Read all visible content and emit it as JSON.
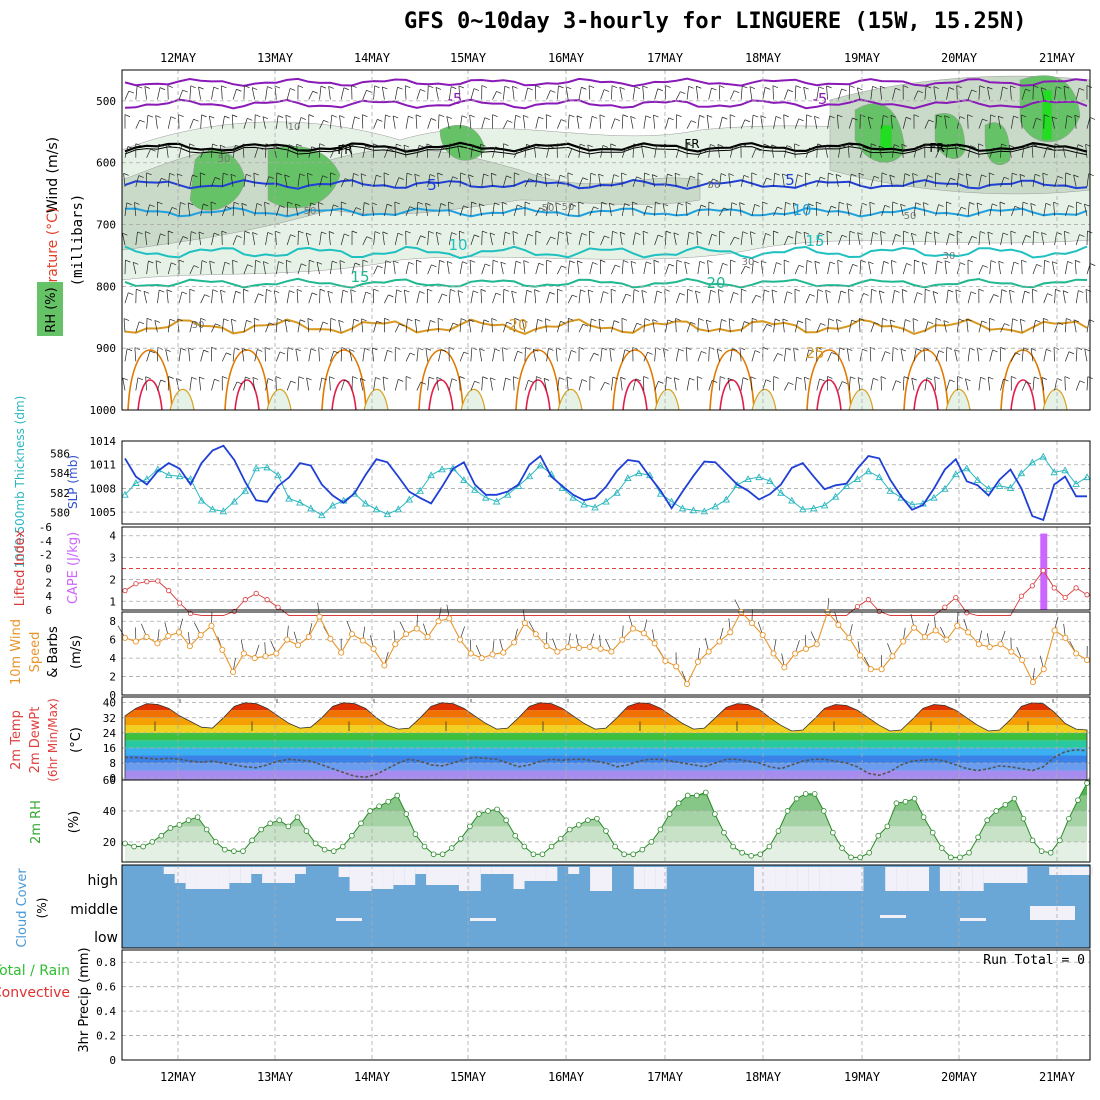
{
  "header": {
    "title": "GFS 0~10day 3-hourly for LINGUERE (15W, 15.25N)"
  },
  "dates": [
    "12MAY",
    "13MAY",
    "14MAY",
    "15MAY",
    "16MAY",
    "17MAY",
    "18MAY",
    "19MAY",
    "20MAY",
    "21MAY"
  ],
  "colors": {
    "rh_green": "#3cbf3c",
    "temp_contour": "#e07a00",
    "slp": "#1f3fd6",
    "thickness": "#2ab7c0",
    "cape": "#cc66ff",
    "lifted_index": "#d93a3a",
    "wind_speed": "#e8962c",
    "rh2m": "#33aa33",
    "cloud": "#6aa7d6",
    "precip_total": "#2fbf2f",
    "precip_conv": "#e03030"
  },
  "chart_data": [
    {
      "type": "heatmap",
      "panel": "upper-air",
      "ylabel_parts": [
        "Wind (m/s)",
        "Temperature (°C)",
        "RH (%)"
      ],
      "yunit": "(millibars)",
      "yticks": [
        "500",
        "600",
        "700",
        "800",
        "900",
        "1000"
      ],
      "ylim": [
        1000,
        450
      ],
      "contour_labels": {
        "freezing": "FR",
        "temps": [
          "-5",
          "-5",
          "5",
          "5",
          "10",
          "10",
          "15",
          "15",
          "20",
          "20",
          "25",
          "25"
        ],
        "rh": [
          "10",
          "50",
          "50",
          "50",
          "50",
          "50",
          "50",
          "30",
          "30",
          "30"
        ]
      }
    },
    {
      "type": "line",
      "panel": "slp-thickness",
      "ylabel_left": "1000-500mb Thickness (dm)",
      "ylabel_right": "SLP (mb)",
      "yticks_left": [
        "586",
        "584",
        "582",
        "580"
      ],
      "yticks_right": [
        "1014",
        "1011",
        "1008",
        "1005"
      ],
      "series": [
        {
          "name": "SLP (mb)",
          "values": [
            1011.8,
            1009.5,
            1008.5,
            1010.2,
            1011.2,
            1010.5,
            1008.5,
            1011.2,
            1012.8,
            1013.4,
            1011.6,
            1008.8,
            1006.5,
            1006.3,
            1008.3,
            1009.4,
            1011.2,
            1010.9,
            1008.5,
            1007.1,
            1006.2,
            1007.4,
            1009.7,
            1011.7,
            1011.3,
            1009.5,
            1007.6,
            1006.8,
            1006.1,
            1008.2,
            1010.5,
            1011.3,
            1008.5,
            1007.2,
            1007.2,
            1007.6,
            1008.5,
            1011.0,
            1012.1,
            1009.5,
            1008.3,
            1007.2,
            1006.5,
            1006.8,
            1008.2,
            1010.2,
            1011.6,
            1011.4,
            1009.5,
            1007.7,
            1005.5,
            1007.6,
            1009.6,
            1011.4,
            1011.3,
            1009.9,
            1008.5,
            1007.7,
            1006.6,
            1007.3,
            1008.5,
            1010.6,
            1011.2,
            1009.5,
            1007.9,
            1008.4,
            1008.6,
            1010.5,
            1012.1,
            1011.8,
            1009.1,
            1007.0,
            1005.3,
            1005.9,
            1008.0,
            1010.4,
            1011.7,
            1008.9,
            1008.4,
            1007.1,
            1009.1,
            1010.4,
            1008.0,
            1004.5,
            1004.0,
            1008.5,
            1009.5,
            1007.0,
            1007.0
          ]
        },
        {
          "name": "1000-500mb Thickness (dm)",
          "values": [
            581.8,
            583.0,
            583.4,
            584.4,
            583.8,
            583.7,
            583.4,
            581.2,
            580.3,
            580.1,
            581.1,
            582.2,
            584.5,
            584.6,
            583.8,
            581.4,
            581.0,
            580.4,
            579.7,
            580.7,
            581.2,
            581.9,
            580.9,
            580.3,
            579.8,
            580.3,
            581.3,
            582.2,
            583.8,
            584.4,
            584.5,
            583.3,
            582.3,
            581.5,
            581.1,
            581.8,
            582.7,
            583.7,
            584.8,
            583.9,
            582.5,
            581.5,
            580.8,
            580.5,
            581.1,
            582.0,
            583.5,
            584.0,
            583.8,
            581.9,
            581.1,
            580.4,
            580.2,
            580.1,
            580.6,
            581.3,
            582.8,
            583.4,
            583.6,
            583.2,
            582.0,
            581.2,
            580.3,
            580.4,
            580.7,
            581.6,
            582.7,
            583.4,
            584.2,
            583.6,
            582.2,
            581.5,
            580.8,
            580.9,
            581.5,
            582.4,
            583.9,
            584.5,
            583.3,
            582.4,
            582.7,
            582.5,
            584.0,
            585.1,
            585.7,
            584.1,
            584.3,
            582.9,
            583.6
          ]
        }
      ]
    },
    {
      "type": "line",
      "panel": "cape-lifted-index",
      "ylabel_left": "Lifted Index",
      "ylabel_right": "CAPE (J/kg)",
      "yticks_left": [
        "-6",
        "-4",
        "-2",
        "0",
        "2",
        "4",
        "6"
      ],
      "yticks_right": [
        "4",
        "3",
        "2",
        "1"
      ],
      "series": [
        {
          "name": "Lifted Index",
          "values": [
            3.2,
            2.2,
            1.9,
            1.8,
            3.2,
            5.0,
            6.5,
            6.8,
            7.0,
            7.0,
            6.2,
            4.5,
            3.6,
            4.5,
            5.6,
            6.8,
            7.0,
            7.0,
            7.0,
            7.0,
            7.0,
            7.0,
            7.0,
            7.0,
            7.0,
            7.0,
            7.0,
            7.0,
            7.0,
            7.0,
            7.0,
            7.0,
            7.0,
            7.0,
            7.0,
            7.0,
            7.0,
            7.0,
            7.0,
            7.0,
            7.0,
            7.0,
            7.0,
            7.0,
            7.0,
            7.0,
            7.0,
            7.0,
            7.0,
            7.0,
            7.0,
            7.0,
            7.0,
            7.0,
            7.0,
            7.0,
            7.0,
            7.0,
            7.0,
            7.0,
            7.0,
            7.0,
            7.0,
            7.0,
            7.0,
            7.0,
            7.0,
            5.5,
            4.5,
            6.2,
            7.0,
            7.0,
            7.0,
            7.0,
            7.0,
            5.6,
            4.2,
            6.4,
            7.0,
            7.0,
            7.0,
            7.0,
            4.0,
            2.5,
            0.3,
            2.8,
            4.2,
            2.8,
            3.8
          ]
        },
        {
          "name": "CAPE (J/kg)",
          "values": [
            0,
            0,
            0,
            0,
            0,
            0,
            0,
            0,
            0,
            0,
            0,
            0,
            0,
            0,
            0,
            0,
            0,
            0,
            0,
            0,
            0,
            0,
            0,
            0,
            0,
            0,
            0,
            0,
            0,
            0,
            0,
            0,
            0,
            0,
            0,
            0,
            0,
            0,
            0,
            0,
            0,
            0,
            0,
            0,
            0,
            0,
            0,
            0,
            0,
            0,
            0,
            0,
            0,
            0,
            0,
            0,
            0,
            0,
            0,
            0,
            0,
            0,
            0,
            0,
            0,
            0,
            0,
            0,
            0,
            0,
            0,
            0,
            0,
            0,
            0,
            0,
            0,
            0,
            0,
            0,
            0,
            0,
            0,
            0,
            4.1,
            0,
            0,
            0,
            0
          ]
        }
      ]
    },
    {
      "type": "line",
      "panel": "10m-wind",
      "ylabel_parts": [
        "10m Wind",
        "Speed",
        "& Barbs",
        "(m/s)"
      ],
      "yticks": [
        "8",
        "6",
        "4",
        "2",
        "0"
      ],
      "series": [
        {
          "name": "10m Wind Speed (m/s)",
          "values": [
            6.2,
            5.8,
            6.3,
            5.6,
            6.4,
            6.8,
            5.3,
            6.5,
            7.5,
            4.9,
            2.5,
            4.5,
            4.0,
            4.2,
            4.5,
            6.0,
            5.4,
            6.3,
            8.5,
            6.1,
            4.6,
            6.6,
            5.9,
            5.0,
            3.2,
            5.5,
            6.6,
            7.2,
            6.3,
            8.0,
            8.3,
            6.0,
            4.5,
            4.0,
            4.4,
            4.6,
            5.7,
            7.8,
            6.6,
            5.3,
            4.7,
            5.2,
            5.1,
            5.2,
            5.0,
            4.7,
            6.0,
            7.2,
            6.7,
            5.6,
            3.7,
            3.1,
            1.2,
            3.6,
            4.7,
            5.8,
            6.8,
            9.0,
            7.8,
            6.5,
            4.5,
            3.0,
            4.5,
            5.0,
            5.5,
            9.0,
            7.6,
            6.2,
            4.3,
            2.8,
            2.8,
            4.2,
            5.8,
            7.3,
            6.3,
            7.0,
            6.0,
            7.5,
            6.8,
            5.5,
            5.2,
            5.5,
            4.7,
            3.8,
            1.4,
            2.8,
            7.0,
            6.2,
            4.5,
            3.8
          ]
        }
      ]
    },
    {
      "type": "area",
      "panel": "2m-temp",
      "ylabel_parts": [
        "2m Temp",
        "2m DewPt",
        "(6hr Min/Max)",
        "(°C)"
      ],
      "yticks": [
        "40",
        "32",
        "24",
        "16",
        "8",
        "0"
      ],
      "series": [
        {
          "name": "2m Temp (°C)",
          "values": [
            33,
            37,
            39.5,
            39,
            37,
            33,
            30,
            27,
            26.5,
            32,
            38,
            40,
            39.5,
            37,
            33,
            29,
            26.5,
            27,
            32,
            38,
            40,
            39.5,
            37,
            32,
            28,
            26,
            26.5,
            32,
            38,
            40,
            39.5,
            37,
            33,
            29,
            26,
            26.5,
            32,
            38,
            40,
            39.5,
            37,
            33,
            29,
            26,
            26.5,
            32,
            38,
            40,
            39.5,
            37,
            33,
            29,
            26,
            26.5,
            32,
            37.5,
            39.5,
            39,
            36.5,
            32,
            28,
            25,
            25.5,
            31,
            37,
            39,
            38.5,
            36,
            32,
            28,
            25,
            25.5,
            31,
            37,
            39,
            38.5,
            36,
            32,
            28,
            25,
            25.5,
            31,
            38,
            40,
            39.5,
            35,
            29,
            26,
            25.5
          ]
        },
        {
          "name": "2m DewPt (°C)",
          "values": [
            11,
            11,
            10.5,
            10,
            10.5,
            10,
            9,
            8.5,
            9,
            8,
            7,
            6,
            5.5,
            7,
            9,
            10,
            9.5,
            9,
            7,
            5,
            3,
            1,
            0.5,
            2,
            5,
            8,
            10,
            9,
            7,
            6.5,
            8,
            10,
            11,
            10.5,
            10,
            8,
            6,
            7,
            9,
            10,
            9.5,
            10,
            10,
            9,
            8,
            6,
            7,
            9,
            10,
            10,
            9,
            8,
            7,
            6,
            8,
            10,
            10,
            9,
            8,
            6,
            5,
            7,
            9,
            10,
            10,
            9,
            8,
            6,
            2.5,
            1.5,
            3.5,
            7,
            9,
            9.5,
            10,
            9,
            7,
            5,
            4,
            5,
            6.5,
            6,
            5,
            4,
            6,
            11,
            14,
            15,
            14.5
          ]
        }
      ]
    },
    {
      "type": "area",
      "panel": "2m-rh",
      "ylabel": "2m RH",
      "yunit": "(%)",
      "yticks": [
        "60",
        "40",
        "20"
      ],
      "series": [
        {
          "name": "2m RH (%)",
          "values": [
            19,
            17,
            17,
            20,
            24,
            29,
            31,
            34,
            36,
            28,
            20,
            15,
            14,
            14,
            21,
            28,
            32,
            34,
            30,
            36,
            27,
            19,
            15,
            14,
            17,
            24,
            32,
            40,
            43,
            46,
            50,
            38,
            25,
            17,
            12,
            12,
            16,
            22,
            30,
            38,
            40,
            41,
            34,
            24,
            17,
            12,
            12,
            17,
            22,
            28,
            31,
            34,
            35,
            27,
            17,
            12,
            12,
            15,
            20,
            28,
            38,
            45,
            50,
            50,
            52,
            38,
            26,
            17,
            13,
            11,
            12,
            17,
            27,
            40,
            48,
            51,
            51,
            40,
            26,
            16,
            10,
            10,
            13,
            24,
            30,
            45,
            46,
            48,
            36,
            26,
            16,
            10,
            10,
            13,
            23,
            34,
            40,
            44,
            48,
            35,
            21,
            14,
            13,
            21,
            35,
            47,
            58
          ]
        }
      ]
    },
    {
      "type": "heatmap",
      "panel": "cloud-cover",
      "ylabel": "Cloud Cover",
      "yunit": "(%)",
      "level_labels": [
        "high",
        "middle",
        "low"
      ]
    },
    {
      "type": "bar",
      "panel": "precip",
      "ylabel_parts": [
        "Total / Rain",
        "Convective",
        "3hr Precip (mm)"
      ],
      "yticks": [
        "0.8",
        "0.6",
        "0.4",
        "0.2",
        "0"
      ],
      "ylim": [
        0,
        0.9
      ],
      "annotation": "Run Total = 0",
      "values": []
    }
  ]
}
